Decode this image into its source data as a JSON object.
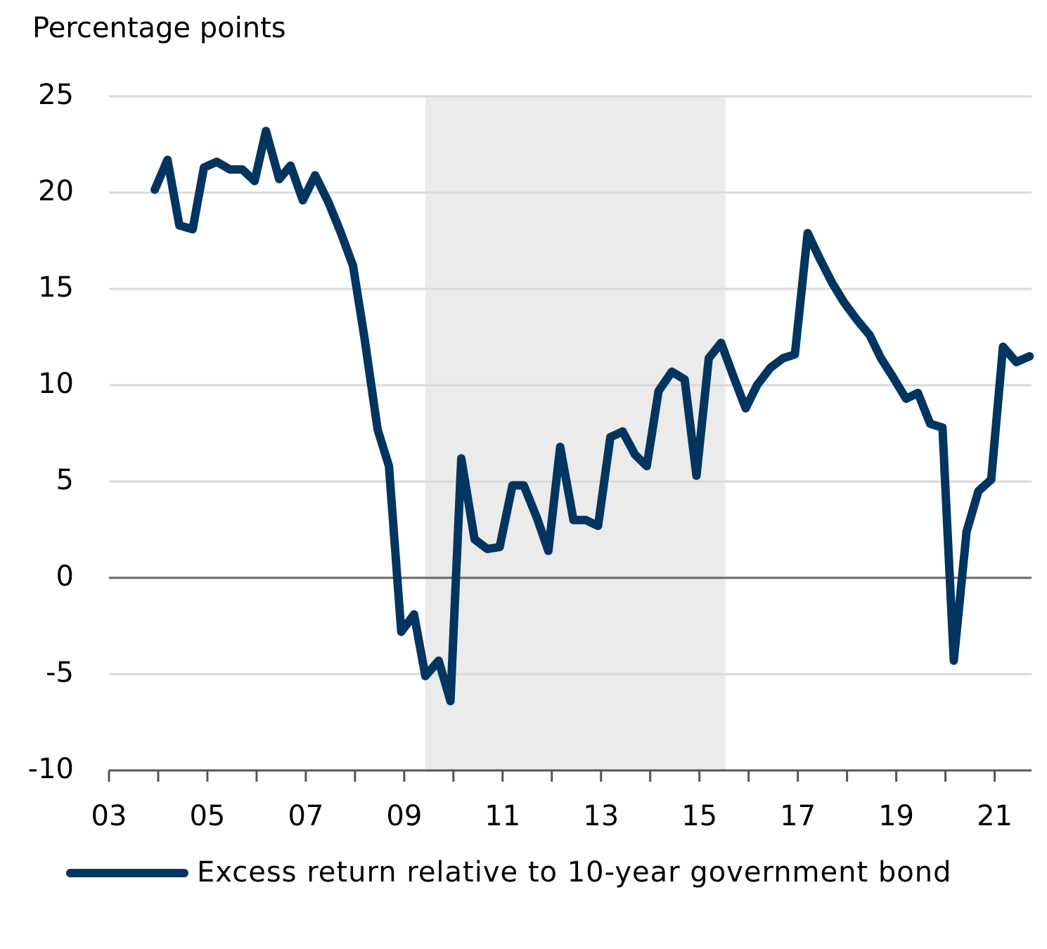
{
  "chart_data": {
    "type": "line",
    "y_axis_label": "Percentage points",
    "x": [
      2003.93,
      2004.19,
      2004.43,
      2004.7,
      2004.93,
      2005.19,
      2005.46,
      2005.71,
      2005.96,
      2006.19,
      2006.46,
      2006.69,
      2006.94,
      2007.19,
      2007.46,
      2007.7,
      2007.96,
      2008.19,
      2008.46,
      2008.69,
      2008.94,
      2009.2,
      2009.43,
      2009.7,
      2009.94,
      2010.16,
      2010.43,
      2010.69,
      2010.94,
      2011.2,
      2011.43,
      2011.7,
      2011.93,
      2012.17,
      2012.44,
      2012.69,
      2012.94,
      2013.19,
      2013.44,
      2013.69,
      2013.93,
      2014.17,
      2014.44,
      2014.7,
      2014.94,
      2015.19,
      2015.44,
      2015.7,
      2015.94,
      2016.17,
      2016.44,
      2016.7,
      2016.94,
      2017.2,
      2017.46,
      2017.7,
      2017.94,
      2018.2,
      2018.46,
      2018.69,
      2018.94,
      2019.2,
      2019.44,
      2019.69,
      2019.94,
      2020.17,
      2020.43,
      2020.67,
      2020.93,
      2021.17,
      2021.44,
      2021.71
    ],
    "series": [
      {
        "name": "Excess return relative to 10-year government bond",
        "color": "#003560",
        "values": [
          20.15,
          21.7,
          18.3,
          18.1,
          21.3,
          21.6,
          21.2,
          21.2,
          20.6,
          23.2,
          20.7,
          21.4,
          19.6,
          20.9,
          19.5,
          18.0,
          16.2,
          12.5,
          7.7,
          5.8,
          -2.8,
          -1.9,
          -5.1,
          -4.3,
          -6.4,
          6.2,
          2.0,
          1.5,
          1.6,
          4.8,
          4.8,
          3.1,
          1.4,
          6.8,
          3.0,
          3.0,
          2.7,
          7.3,
          7.6,
          6.4,
          5.8,
          9.7,
          10.7,
          10.3,
          5.3,
          11.4,
          12.2,
          10.4,
          8.8,
          10.0,
          10.9,
          11.4,
          11.6,
          17.9,
          16.5,
          15.3,
          14.3,
          13.4,
          12.6,
          11.4,
          10.4,
          9.3,
          9.6,
          8.0,
          7.8,
          -4.3,
          2.4,
          4.5,
          5.1,
          12.0,
          11.2,
          11.5
        ]
      }
    ],
    "xlim": [
      2003,
      2021.75
    ],
    "xticks": [
      {
        "value": 2003,
        "label": "03"
      },
      {
        "value": 2005,
        "label": "05"
      },
      {
        "value": 2007,
        "label": "07"
      },
      {
        "value": 2009,
        "label": "09"
      },
      {
        "value": 2011,
        "label": "11"
      },
      {
        "value": 2013,
        "label": "13"
      },
      {
        "value": 2015,
        "label": "15"
      },
      {
        "value": 2017,
        "label": "17"
      },
      {
        "value": 2019,
        "label": "19"
      },
      {
        "value": 2021,
        "label": "21"
      }
    ],
    "x_minor_ticks": [
      2004,
      2006,
      2008,
      2010,
      2012,
      2014,
      2016,
      2018,
      2020
    ],
    "ylim": [
      -10,
      25
    ],
    "yticks": [
      -10,
      -5,
      0,
      5,
      10,
      15,
      20,
      25
    ],
    "grid": true,
    "shaded_range": [
      2009.43,
      2015.53
    ],
    "shade_color": "#ebebeb",
    "legend": "bottom-left"
  }
}
